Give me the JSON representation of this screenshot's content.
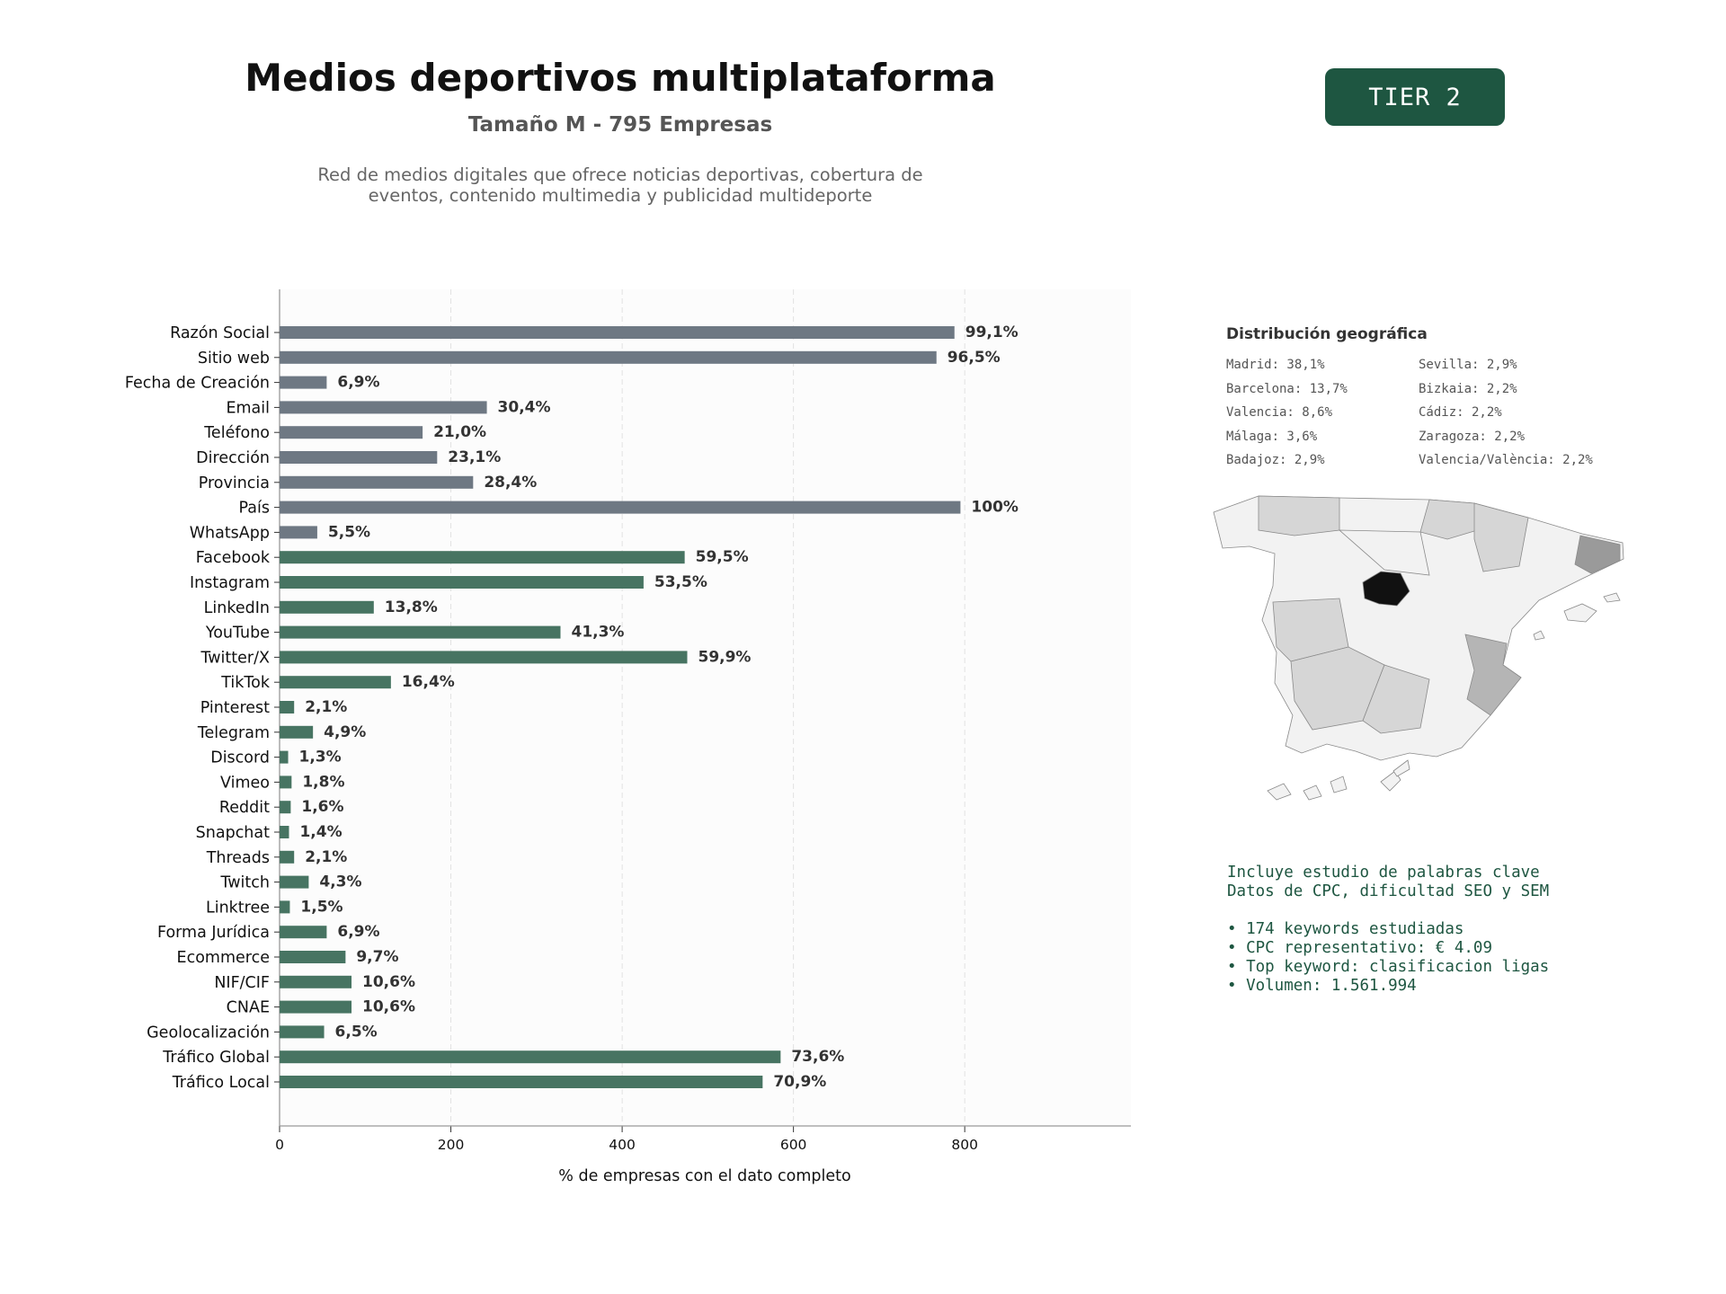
{
  "header": {
    "title": "Medios deportivos multiplataforma",
    "subtitle": "Tamaño M - 795 Empresas",
    "description_line1": "Red de medios digitales que ofrece noticias deportivas, cobertura de",
    "description_line2": "eventos, contenido multimedia y publicidad multideporte",
    "tier": "TIER 2"
  },
  "chart_data": {
    "type": "bar",
    "orientation": "horizontal",
    "xlabel": "% de empresas con el dato completo",
    "ylabel": "",
    "xlim": [
      0,
      994
    ],
    "xticks": [
      0,
      200,
      400,
      600,
      800
    ],
    "grid": "vertical dashed",
    "colors": {
      "basic": "#6e7883",
      "digital": "#477462"
    },
    "bars": [
      {
        "category": "Razón Social",
        "value": 788,
        "label": "99,1%",
        "group": "basic"
      },
      {
        "category": "Sitio web",
        "value": 767,
        "label": "96,5%",
        "group": "basic"
      },
      {
        "category": "Fecha de Creación",
        "value": 55,
        "label": "6,9%",
        "group": "basic"
      },
      {
        "category": "Email",
        "value": 242,
        "label": "30,4%",
        "group": "basic"
      },
      {
        "category": "Teléfono",
        "value": 167,
        "label": "21,0%",
        "group": "basic"
      },
      {
        "category": "Dirección",
        "value": 184,
        "label": "23,1%",
        "group": "basic"
      },
      {
        "category": "Provincia",
        "value": 226,
        "label": "28,4%",
        "group": "basic"
      },
      {
        "category": "País",
        "value": 795,
        "label": "100%",
        "group": "basic"
      },
      {
        "category": "WhatsApp",
        "value": 44,
        "label": "5,5%",
        "group": "basic"
      },
      {
        "category": "Facebook",
        "value": 473,
        "label": "59,5%",
        "group": "digital"
      },
      {
        "category": "Instagram",
        "value": 425,
        "label": "53,5%",
        "group": "digital"
      },
      {
        "category": "LinkedIn",
        "value": 110,
        "label": "13,8%",
        "group": "digital"
      },
      {
        "category": "YouTube",
        "value": 328,
        "label": "41,3%",
        "group": "digital"
      },
      {
        "category": "Twitter/X",
        "value": 476,
        "label": "59,9%",
        "group": "digital"
      },
      {
        "category": "TikTok",
        "value": 130,
        "label": "16,4%",
        "group": "digital"
      },
      {
        "category": "Pinterest",
        "value": 17,
        "label": "2,1%",
        "group": "digital"
      },
      {
        "category": "Telegram",
        "value": 39,
        "label": "4,9%",
        "group": "digital"
      },
      {
        "category": "Discord",
        "value": 10,
        "label": "1,3%",
        "group": "digital"
      },
      {
        "category": "Vimeo",
        "value": 14,
        "label": "1,8%",
        "group": "digital"
      },
      {
        "category": "Reddit",
        "value": 13,
        "label": "1,6%",
        "group": "digital"
      },
      {
        "category": "Snapchat",
        "value": 11,
        "label": "1,4%",
        "group": "digital"
      },
      {
        "category": "Threads",
        "value": 17,
        "label": "2,1%",
        "group": "digital"
      },
      {
        "category": "Twitch",
        "value": 34,
        "label": "4,3%",
        "group": "digital"
      },
      {
        "category": "Linktree",
        "value": 12,
        "label": "1,5%",
        "group": "digital"
      },
      {
        "category": "Forma Jurídica",
        "value": 55,
        "label": "6,9%",
        "group": "digital"
      },
      {
        "category": "Ecommerce",
        "value": 77,
        "label": "9,7%",
        "group": "digital"
      },
      {
        "category": "NIF/CIF",
        "value": 84,
        "label": "10,6%",
        "group": "digital"
      },
      {
        "category": "CNAE",
        "value": 84,
        "label": "10,6%",
        "group": "digital"
      },
      {
        "category": "Geolocalización",
        "value": 52,
        "label": "6,5%",
        "group": "digital"
      },
      {
        "category": "Tráfico Global",
        "value": 585,
        "label": "73,6%",
        "group": "digital"
      },
      {
        "category": "Tráfico Local",
        "value": 564,
        "label": "70,9%",
        "group": "digital"
      }
    ]
  },
  "geo": {
    "title": "Distribución geográfica",
    "items": [
      "Madrid: 38,1%",
      "Barcelona: 13,7%",
      "Valencia: 8,6%",
      "Málaga: 3,6%",
      "Badajoz: 2,9%",
      "Sevilla: 2,9%",
      "Bizkaia: 2,2%",
      "Cádiz: 2,2%",
      "Zaragoza: 2,2%",
      "Valencia/València: 2,2%"
    ],
    "map_colors": {
      "madrid": "#111111",
      "barcelona": "#9a9a9a",
      "valencia": "#b5b5b5",
      "mid": "#d6d6d6",
      "light": "#f2f2f2",
      "border": "#8a8a8a"
    }
  },
  "keywords": {
    "line1": "Incluye estudio de palabras clave",
    "line2": "Datos de CPC, dificultad SEO y SEM",
    "bullet1": "• 174 keywords estudiadas",
    "bullet2": "• CPC representativo: € 4.09",
    "bullet3": "• Top keyword: clasificacion ligas",
    "bullet4": "• Volumen: 1.561.994"
  }
}
